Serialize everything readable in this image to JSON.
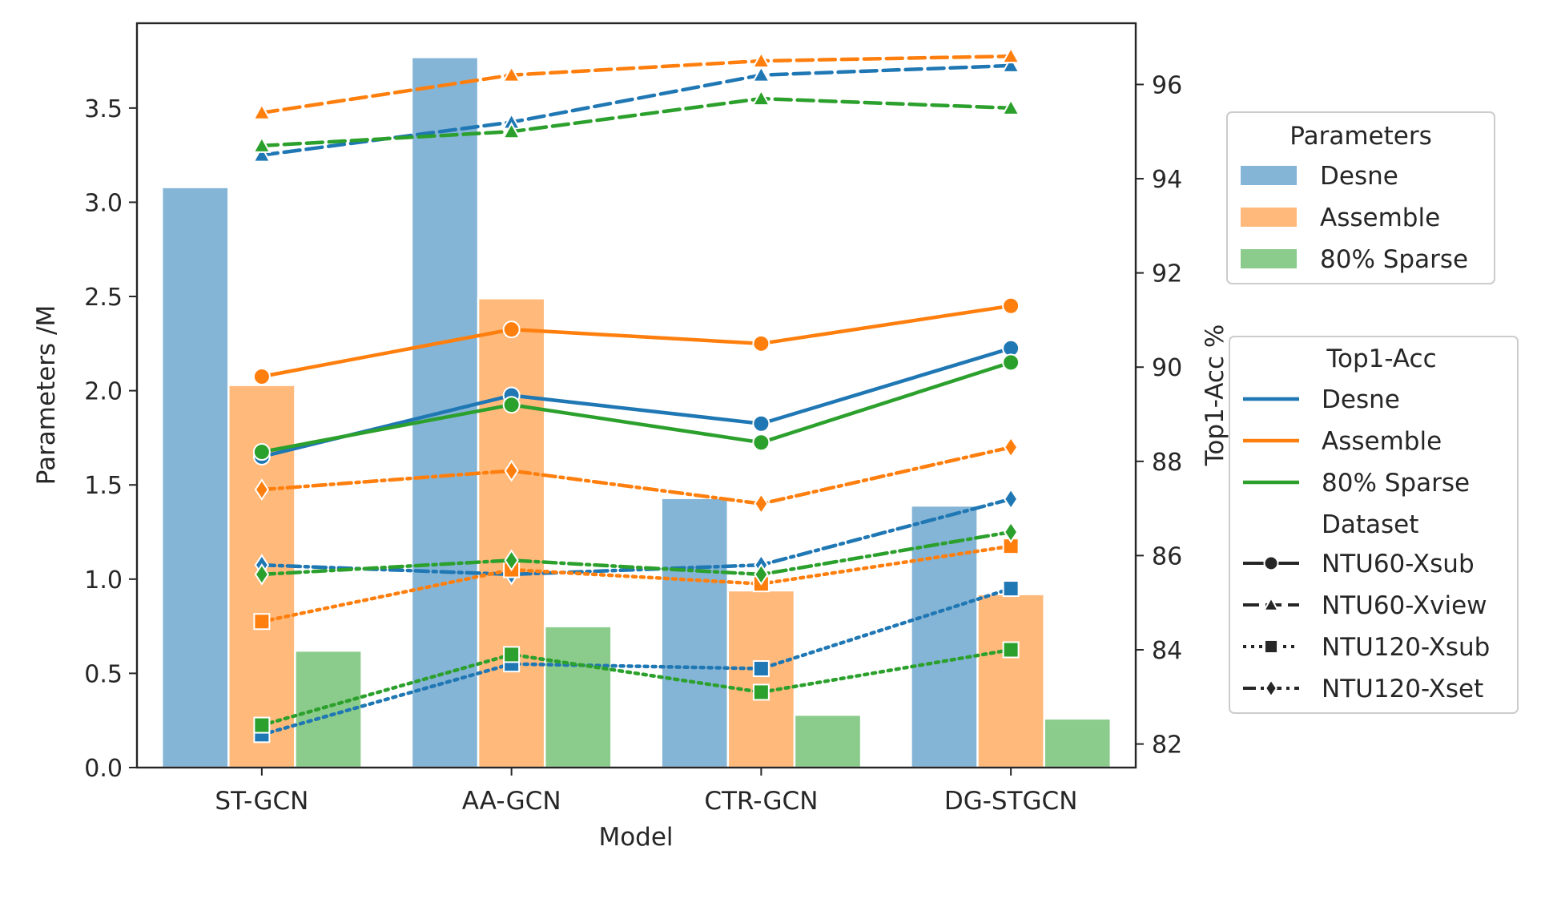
{
  "chart_data": {
    "type": "bar+line",
    "xlabel": "Model",
    "ylabel_left": "Parameters /M",
    "ylabel_right": "Top1-Acc %",
    "categories": [
      "ST-GCN",
      "AA-GCN",
      "CTR-GCN",
      "DG-STGCN"
    ],
    "ylim_left": [
      0,
      3.95
    ],
    "yticks_left": [
      "0.0",
      "0.5",
      "1.0",
      "1.5",
      "2.0",
      "2.5",
      "3.0",
      "3.5"
    ],
    "ylim_right": [
      81.5,
      97.3
    ],
    "yticks_right": [
      "82",
      "84",
      "86",
      "88",
      "90",
      "92",
      "94",
      "96"
    ],
    "bar_series": [
      {
        "name": "Desne",
        "color": "#1f77b4",
        "values": [
          3.08,
          3.77,
          1.43,
          1.39
        ]
      },
      {
        "name": "Assemble",
        "color": "#ff7f0e",
        "values": [
          2.03,
          2.49,
          0.94,
          0.92
        ]
      },
      {
        "name": "80% Sparse",
        "color": "#2ca02c",
        "values": [
          0.62,
          0.75,
          0.28,
          0.26
        ]
      }
    ],
    "line_series": [
      {
        "model": "Desne",
        "dataset": "NTU60-Xsub",
        "color": "#1f77b4",
        "values": [
          88.1,
          89.4,
          88.8,
          90.4
        ]
      },
      {
        "model": "Desne",
        "dataset": "NTU60-Xview",
        "color": "#1f77b4",
        "values": [
          94.5,
          95.2,
          96.2,
          96.4
        ]
      },
      {
        "model": "Desne",
        "dataset": "NTU120-Xsub",
        "color": "#1f77b4",
        "values": [
          82.2,
          83.7,
          83.6,
          85.3
        ]
      },
      {
        "model": "Desne",
        "dataset": "NTU120-Xset",
        "color": "#1f77b4",
        "values": [
          85.8,
          85.6,
          85.8,
          87.2
        ]
      },
      {
        "model": "Assemble",
        "dataset": "NTU60-Xsub",
        "color": "#ff7f0e",
        "values": [
          89.8,
          90.8,
          90.5,
          91.3
        ]
      },
      {
        "model": "Assemble",
        "dataset": "NTU60-Xview",
        "color": "#ff7f0e",
        "values": [
          95.4,
          96.2,
          96.5,
          96.6
        ]
      },
      {
        "model": "Assemble",
        "dataset": "NTU120-Xsub",
        "color": "#ff7f0e",
        "values": [
          84.6,
          85.7,
          85.4,
          86.2
        ]
      },
      {
        "model": "Assemble",
        "dataset": "NTU120-Xset",
        "color": "#ff7f0e",
        "values": [
          87.4,
          87.8,
          87.1,
          88.3
        ]
      },
      {
        "model": "80% Sparse",
        "dataset": "NTU60-Xsub",
        "color": "#2ca02c",
        "values": [
          88.2,
          89.2,
          88.4,
          90.1
        ]
      },
      {
        "model": "80% Sparse",
        "dataset": "NTU60-Xview",
        "color": "#2ca02c",
        "values": [
          94.7,
          95.0,
          95.7,
          95.5
        ]
      },
      {
        "model": "80% Sparse",
        "dataset": "NTU120-Xsub",
        "color": "#2ca02c",
        "values": [
          82.4,
          83.9,
          83.1,
          84.0
        ]
      },
      {
        "model": "80% Sparse",
        "dataset": "NTU120-Xset",
        "color": "#2ca02c",
        "values": [
          85.6,
          85.9,
          85.6,
          86.5
        ]
      }
    ],
    "dataset_styles": [
      {
        "dataset": "NTU60-Xsub",
        "marker": "circle",
        "dash": "solid"
      },
      {
        "dataset": "NTU60-Xview",
        "marker": "triangle",
        "dash": "dashed"
      },
      {
        "dataset": "NTU120-Xsub",
        "marker": "square",
        "dash": "dotted"
      },
      {
        "dataset": "NTU120-Xset",
        "marker": "diamond",
        "dash": "dashdot"
      }
    ],
    "legend_parameters": {
      "title": "Parameters",
      "entries": [
        "Desne",
        "Assemble",
        "80% Sparse"
      ],
      "placement": "right-top"
    },
    "legend_top1": {
      "title": "Top1-Acc",
      "entries": [
        "Desne",
        "Assemble",
        "80% Sparse"
      ],
      "dataset_title": "Dataset",
      "dataset_entries": [
        "NTU60-Xsub",
        "NTU60-Xview",
        "NTU120-Xsub",
        "NTU120-Xset"
      ],
      "placement": "right-middle"
    }
  }
}
